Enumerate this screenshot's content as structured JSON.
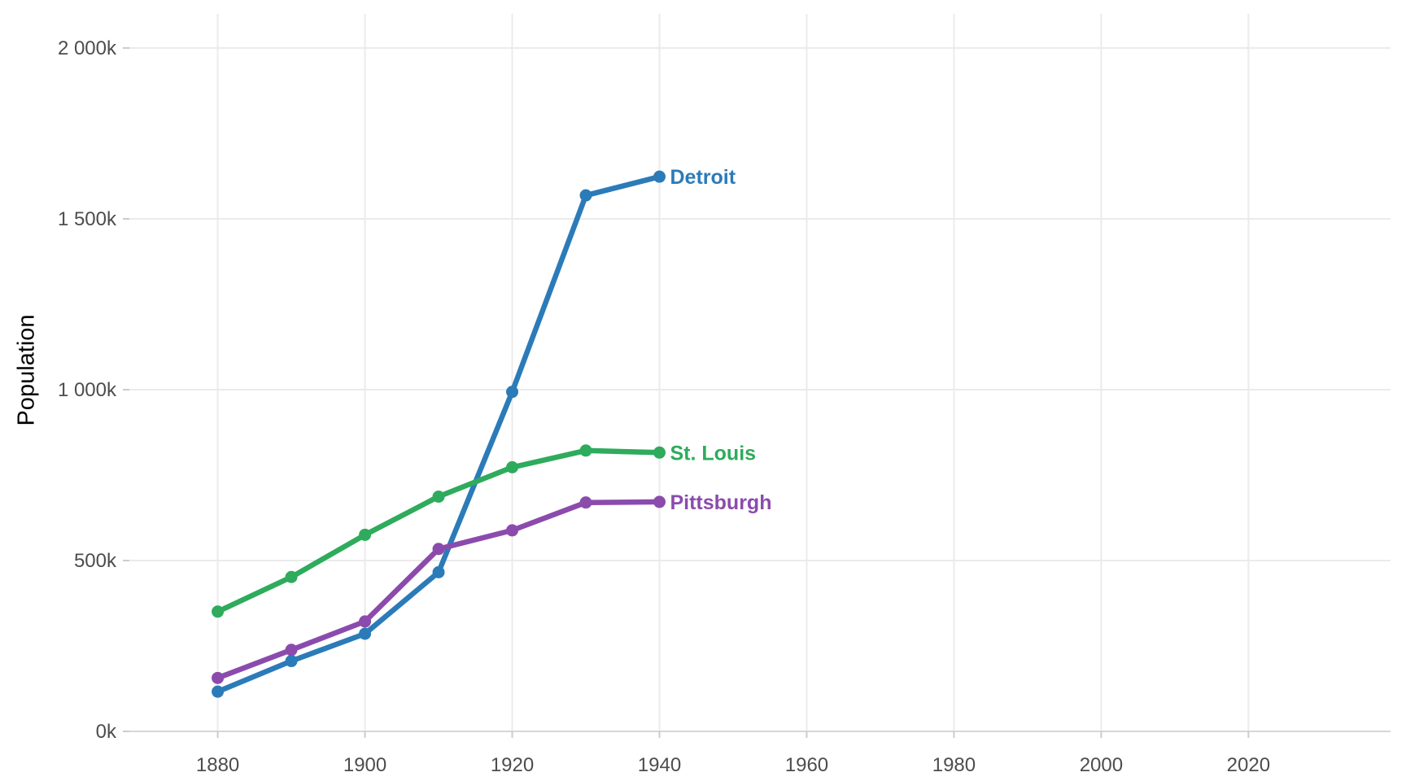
{
  "chart_data": {
    "type": "line",
    "title": "",
    "xlabel": "",
    "ylabel": "Population",
    "grid": true,
    "legend_position": "inline-end-of-line",
    "xlim": [
      1868,
      2039.3
    ],
    "ylim": [
      0,
      2100000
    ],
    "x": [
      1880,
      1890,
      1900,
      1910,
      1920,
      1930,
      1940
    ],
    "series": [
      {
        "name": "Detroit",
        "color": "#2b7bb9",
        "values": [
          116340,
          205876,
          285704,
          465766,
          993678,
          1568662,
          1623452
        ]
      },
      {
        "name": "St. Louis",
        "color": "#2eab5c",
        "values": [
          350518,
          451770,
          575238,
          687029,
          772897,
          821960,
          816048
        ]
      },
      {
        "name": "Pittsburgh",
        "color": "#8b4bad",
        "values": [
          156389,
          238617,
          321616,
          533905,
          588343,
          669817,
          671659
        ]
      }
    ],
    "x_ticks": [
      {
        "value": 1880,
        "label": "1880"
      },
      {
        "value": 1900,
        "label": "1900"
      },
      {
        "value": 1920,
        "label": "1920"
      },
      {
        "value": 1940,
        "label": "1940"
      },
      {
        "value": 1960,
        "label": "1960"
      },
      {
        "value": 1980,
        "label": "1980"
      },
      {
        "value": 2000,
        "label": "2000"
      },
      {
        "value": 2020,
        "label": "2020"
      }
    ],
    "y_ticks": [
      {
        "value": 0,
        "label": "0k"
      },
      {
        "value": 500000,
        "label": "500k"
      },
      {
        "value": 1000000,
        "label": "1 000k"
      },
      {
        "value": 1500000,
        "label": "1 500k"
      },
      {
        "value": 2000000,
        "label": "2 000k"
      }
    ]
  },
  "styles": {
    "gridline_color": "#ebebeb",
    "axis_line_color": "#d7d7d7",
    "tick_mark_color": "#cccccc",
    "tick_label_color": "#4d4d4d",
    "axis_title_color": "#000000",
    "background_color": "#ffffff"
  }
}
